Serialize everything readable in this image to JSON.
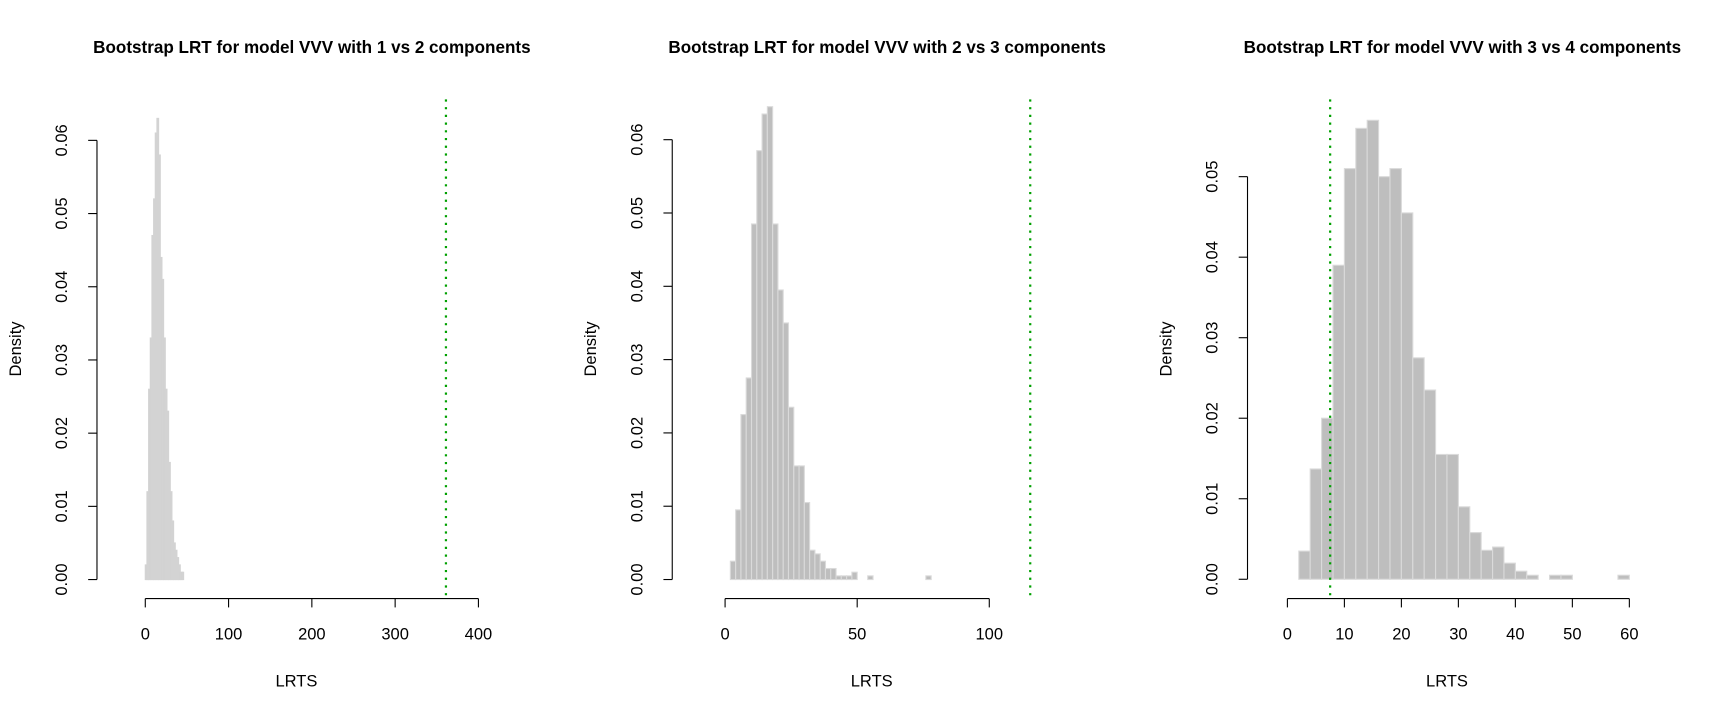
{
  "chart_data": [
    {
      "type": "histogram",
      "title": "Bootstrap LRT for model VVV with 1 vs 2 components",
      "xlabel": "LRTS",
      "ylabel": "Density",
      "bins": [
        0,
        2,
        4,
        6,
        8,
        10,
        12,
        14,
        16,
        18,
        20,
        22,
        24,
        26,
        28,
        30,
        32,
        34,
        36,
        38,
        40,
        42,
        44,
        46
      ],
      "counts": [
        0.002,
        0.012,
        0.026,
        0.033,
        0.047,
        0.052,
        0.061,
        0.063,
        0.058,
        0.044,
        0.041,
        0.033,
        0.026,
        0.023,
        0.016,
        0.012,
        0.008,
        0.005,
        0.004,
        0.003,
        0.002,
        0.001,
        0.001
      ],
      "color": "#d3d3d3",
      "edgecolor": "#d3d3d3",
      "vline": 361,
      "vline_color": "#00a000",
      "xlim": [
        -58,
        421
      ],
      "xticks": [
        0,
        100,
        200,
        300,
        400
      ],
      "ylim": [
        -0.0026,
        0.0656
      ],
      "yticks": [
        {
          "value": 0,
          "label": "0.00"
        },
        0.01,
        0.02,
        0.03,
        0.04,
        0.05,
        0.06
      ]
    },
    {
      "type": "histogram",
      "title": "Bootstrap LRT for model VVV with 2 vs 3 components",
      "xlabel": "LRTS",
      "ylabel": "Density",
      "bins": [
        2,
        4,
        6,
        8,
        10,
        12,
        14,
        16,
        18,
        20,
        22,
        24,
        26,
        28,
        30,
        32,
        34,
        36,
        38,
        40,
        42,
        44,
        46,
        48,
        50,
        52,
        54,
        56,
        58,
        60,
        62,
        64,
        66,
        68,
        70,
        72,
        74,
        76,
        78
      ],
      "counts": [
        0.0025,
        0.0095,
        0.0225,
        0.0275,
        0.0485,
        0.0585,
        0.0635,
        0.0645,
        0.0485,
        0.0395,
        0.035,
        0.0235,
        0.0155,
        0.0155,
        0.0105,
        0.004,
        0.0035,
        0.0025,
        0.0015,
        0.0015,
        0.0005,
        0.0005,
        0.0005,
        0.001,
        0,
        0,
        0.0005,
        0,
        0,
        0,
        0,
        0,
        0,
        0,
        0,
        0,
        0,
        0.0005
      ],
      "color": "#bebebe",
      "edgecolor": "#dadada",
      "vline": 115.5,
      "vline_color": "#00a000",
      "xlim": [
        -20,
        131
      ],
      "xticks": [
        0,
        50,
        100
      ],
      "ylim": [
        -0.0026,
        0.0655
      ],
      "yticks": [
        {
          "value": 0,
          "label": "0.00"
        },
        0.01,
        0.02,
        0.03,
        0.04,
        0.05,
        0.06
      ]
    },
    {
      "type": "histogram",
      "title": "Bootstrap LRT for model VVV with 3 vs 4 components",
      "xlabel": "LRTS",
      "ylabel": "Density",
      "bins": [
        2,
        4,
        6,
        8,
        10,
        12,
        14,
        16,
        18,
        20,
        22,
        24,
        26,
        28,
        30,
        32,
        34,
        36,
        38,
        40,
        42,
        44,
        46,
        48,
        50,
        52,
        54,
        56,
        58,
        60
      ],
      "counts": [
        0.0035,
        0.0137,
        0.02,
        0.039,
        0.051,
        0.056,
        0.057,
        0.05,
        0.051,
        0.0455,
        0.0275,
        0.0235,
        0.0155,
        0.0155,
        0.009,
        0.0058,
        0.0036,
        0.004,
        0.002,
        0.001,
        0.0005,
        0,
        0.0005,
        0.0005,
        0,
        0,
        0,
        0,
        0.0005
      ],
      "color": "#bebebe",
      "edgecolor": "#dadada",
      "vline": 7.5,
      "vline_color": "#00a000",
      "xlim": [
        -7,
        63
      ],
      "xticks": [
        0,
        10,
        20,
        30,
        40,
        50,
        60
      ],
      "ylim": [
        -0.0024,
        0.0596
      ],
      "yticks": [
        {
          "value": 0,
          "label": "0.00"
        },
        0.01,
        0.02,
        0.03,
        0.04,
        0.05
      ]
    }
  ]
}
